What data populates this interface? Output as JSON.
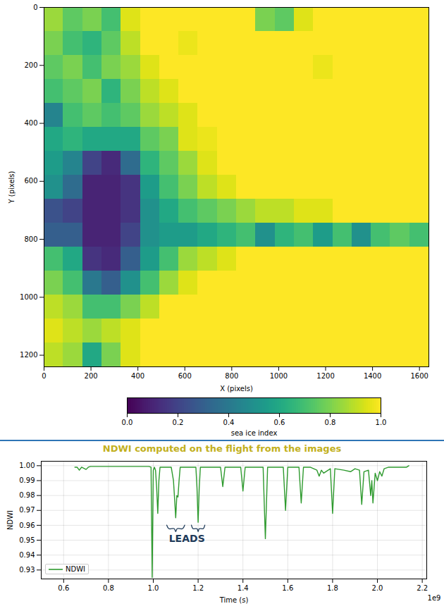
{
  "chart_data": [
    {
      "type": "heatmap",
      "xlabel": "X (pixels)",
      "ylabel": "Y (pixels)",
      "xlim": [
        0,
        1640
      ],
      "ylim": [
        1240,
        0
      ],
      "xticks": [
        0,
        200,
        400,
        600,
        800,
        1000,
        1200,
        1400,
        1600
      ],
      "yticks": [
        0,
        200,
        400,
        600,
        800,
        1000,
        1200
      ],
      "color": "viridis",
      "x_edges": [
        0,
        82,
        164,
        246,
        328,
        410,
        492,
        574,
        656,
        738,
        820,
        902,
        984,
        1066,
        1148,
        1230,
        1312,
        1394,
        1476,
        1558,
        1640
      ],
      "y_edges": [
        0,
        83,
        165,
        248,
        331,
        413,
        496,
        579,
        661,
        744,
        827,
        909,
        992,
        1075,
        1157,
        1240
      ],
      "cells": [
        [
          0.85,
          0.75,
          0.8,
          0.7,
          0.95,
          1,
          1,
          1,
          1,
          1,
          1,
          0.8,
          0.75,
          0.95,
          1,
          1,
          1,
          1,
          1,
          1
        ],
        [
          0.8,
          0.7,
          0.65,
          0.75,
          0.9,
          1,
          1,
          0.97,
          1,
          1,
          1,
          1,
          1,
          1,
          1,
          1,
          1,
          1,
          1,
          1
        ],
        [
          0.75,
          0.8,
          0.7,
          0.8,
          0.85,
          0.95,
          1,
          1,
          1,
          1,
          1,
          1,
          1,
          1,
          0.97,
          1,
          1,
          1,
          1,
          1
        ],
        [
          0.7,
          0.75,
          0.8,
          0.65,
          0.8,
          0.9,
          0.95,
          1,
          1,
          1,
          1,
          1,
          1,
          1,
          1,
          1,
          1,
          1,
          1,
          1
        ],
        [
          0.45,
          0.7,
          0.75,
          0.7,
          0.75,
          0.85,
          0.9,
          0.95,
          1,
          1,
          1,
          1,
          1,
          1,
          1,
          1,
          1,
          1,
          1,
          1
        ],
        [
          0.6,
          0.65,
          0.6,
          0.6,
          0.6,
          0.75,
          0.8,
          0.95,
          0.97,
          1,
          1,
          1,
          1,
          1,
          1,
          1,
          1,
          1,
          1,
          1
        ],
        [
          0.55,
          0.45,
          0.2,
          0.12,
          0.35,
          0.65,
          0.75,
          0.85,
          0.95,
          1,
          1,
          1,
          1,
          1,
          1,
          1,
          1,
          1,
          1,
          1
        ],
        [
          0.5,
          0.35,
          0.1,
          0.1,
          0.15,
          0.55,
          0.7,
          0.8,
          0.9,
          0.95,
          1,
          1,
          1,
          1,
          1,
          1,
          1,
          1,
          1,
          1
        ],
        [
          0.25,
          0.2,
          0.1,
          0.1,
          0.15,
          0.5,
          0.6,
          0.7,
          0.75,
          0.8,
          0.85,
          0.9,
          0.9,
          0.95,
          0.95,
          1,
          1,
          1,
          1,
          1
        ],
        [
          0.3,
          0.3,
          0.1,
          0.1,
          0.2,
          0.5,
          0.55,
          0.55,
          0.6,
          0.65,
          0.7,
          0.5,
          0.65,
          0.7,
          0.55,
          0.7,
          0.5,
          0.7,
          0.75,
          0.7
        ],
        [
          0.7,
          0.6,
          0.15,
          0.12,
          0.3,
          0.55,
          0.7,
          0.85,
          0.9,
          0.95,
          1,
          1,
          1,
          1,
          1,
          1,
          1,
          1,
          1,
          1
        ],
        [
          0.8,
          0.7,
          0.4,
          0.3,
          0.5,
          0.7,
          0.85,
          0.95,
          1,
          1,
          1,
          1,
          1,
          1,
          1,
          1,
          1,
          1,
          1,
          1
        ],
        [
          0.9,
          0.85,
          0.7,
          0.7,
          0.8,
          0.9,
          1,
          1,
          1,
          1,
          1,
          1,
          1,
          1,
          1,
          1,
          1,
          1,
          1,
          1
        ],
        [
          0.95,
          0.9,
          0.85,
          0.9,
          0.95,
          1,
          1,
          1,
          1,
          1,
          1,
          1,
          1,
          1,
          1,
          1,
          1,
          1,
          1,
          1
        ],
        [
          0.9,
          0.85,
          0.6,
          0.8,
          0.95,
          1,
          1,
          1,
          1,
          1,
          1,
          1,
          1,
          1,
          1,
          1,
          1,
          1,
          1,
          1
        ]
      ],
      "colorbar": {
        "label": "sea ice index",
        "range": [
          0,
          1
        ],
        "ticks": [
          {
            "value": 0,
            "label": "0.0"
          },
          {
            "value": 0.2,
            "label": "0.2"
          },
          {
            "value": 0.4,
            "label": "0.4"
          },
          {
            "value": 0.6,
            "label": "0.6"
          },
          {
            "value": 0.8,
            "label": "0.8"
          },
          {
            "value": 1,
            "label": "1.0"
          }
        ]
      }
    },
    {
      "type": "line",
      "title": "NDWI computed on the flight from the images",
      "xlabel": "Time (s)",
      "ylabel": "NDWI",
      "x_offset_text": "1e9",
      "xlim": [
        0.5,
        2.22
      ],
      "ylim": [
        0.924,
        1.003
      ],
      "xticks": [
        0.6,
        0.8,
        {
          "value": 1,
          "label": "1.0"
        },
        1.2,
        1.4,
        1.6,
        1.8,
        {
          "value": 2,
          "label": "2.0"
        },
        2.2
      ],
      "yticks": [
        0.93,
        0.94,
        0.95,
        0.96,
        0.97,
        0.98,
        0.99,
        {
          "value": 1,
          "label": "1.00"
        }
      ],
      "grid": true,
      "legend": "lower left",
      "x": [
        0.65,
        0.66,
        0.67,
        0.68,
        0.7,
        0.71,
        0.72,
        0.8,
        0.9,
        0.98,
        0.99,
        0.995,
        1.0,
        1.005,
        1.01,
        1.015,
        1.02,
        1.025,
        1.03,
        1.05,
        1.08,
        1.09,
        1.095,
        1.1,
        1.105,
        1.11,
        1.115,
        1.12,
        1.15,
        1.19,
        1.195,
        1.2,
        1.205,
        1.21,
        1.25,
        1.3,
        1.31,
        1.32,
        1.39,
        1.4,
        1.41,
        1.49,
        1.5,
        1.51,
        1.58,
        1.59,
        1.6,
        1.65,
        1.66,
        1.67,
        1.7,
        1.73,
        1.74,
        1.75,
        1.76,
        1.79,
        1.8,
        1.81,
        1.85,
        1.88,
        1.9,
        1.92,
        1.93,
        1.94,
        1.96,
        1.97,
        1.975,
        1.98,
        1.99,
        2.0,
        2.01,
        2.02,
        2.03,
        2.05,
        2.1,
        2.13,
        2.14
      ],
      "series": [
        {
          "name": "NDWI",
          "color": "#2e9a2e",
          "values": [
            0.999,
            0.999,
            0.997,
            0.999,
            0.9975,
            0.999,
            0.9995,
            0.9995,
            0.9995,
            0.9995,
            0.999,
            0.925,
            0.997,
            0.999,
            0.997,
            0.985,
            0.968,
            0.99,
            0.999,
            0.999,
            0.999,
            0.99,
            0.978,
            0.965,
            0.98,
            0.979,
            0.99,
            0.999,
            0.999,
            0.999,
            0.985,
            0.962,
            0.985,
            0.999,
            0.999,
            0.999,
            0.986,
            0.999,
            0.999,
            0.983,
            0.999,
            0.999,
            0.951,
            0.999,
            0.999,
            0.97,
            0.999,
            0.999,
            0.975,
            0.999,
            0.999,
            0.997,
            0.993,
            0.997,
            0.995,
            0.998,
            0.968,
            0.998,
            0.997,
            0.996,
            0.998,
            0.997,
            0.974,
            0.996,
            0.997,
            0.98,
            0.99,
            0.975,
            0.995,
            0.99,
            0.996,
            0.993,
            0.998,
            0.999,
            0.999,
            0.999,
            1.0
          ]
        }
      ],
      "annotations": [
        {
          "text": "LEADS",
          "x": 1.15,
          "y": 0.951,
          "ranges": [
            [
              1.06,
              1.14
            ],
            [
              1.17,
              1.23
            ]
          ]
        }
      ]
    }
  ]
}
